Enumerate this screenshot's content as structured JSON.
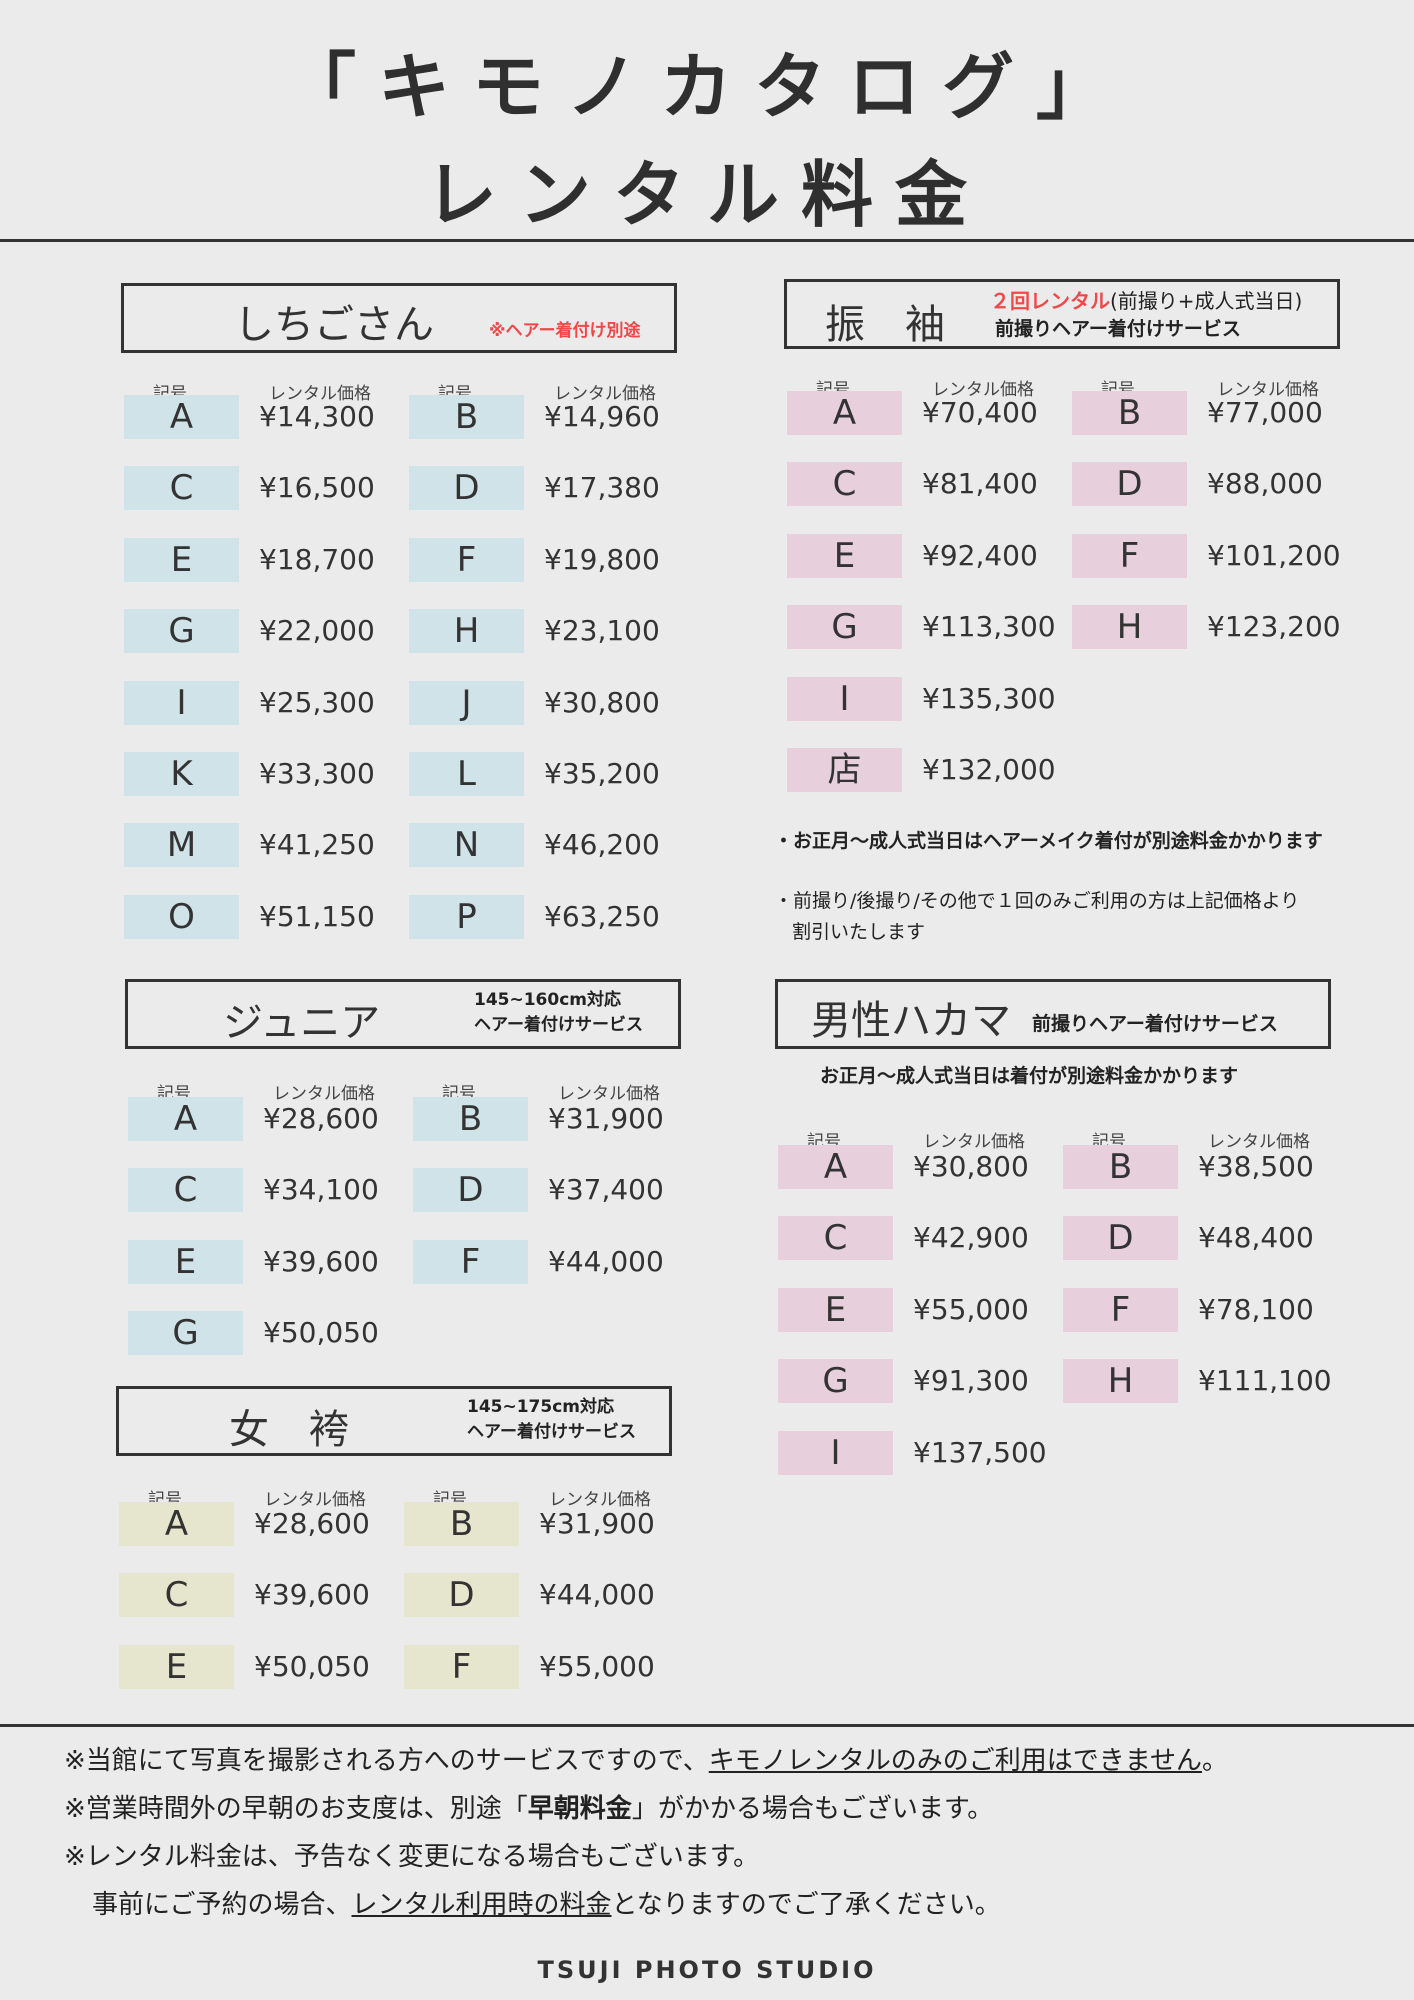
{
  "title": {
    "line1": "「キモノカタログ」",
    "line2": "レンタル料金"
  },
  "col_headers": {
    "code": "記号",
    "price": "レンタル価格"
  },
  "colors": {
    "shichigosan": "#cfe3e8",
    "furisode": "#e7cfdc",
    "junior": "#cfe3e8",
    "onna_hakama": "#e6e6cf",
    "danse_hakama": "#e7cfdc",
    "accent_red": "#f04848"
  },
  "shichigosan": {
    "name": "しちごさん",
    "note": "※ヘアー着付け別途",
    "items": [
      [
        "A",
        "¥14,300"
      ],
      [
        "B",
        "¥14,960"
      ],
      [
        "C",
        "¥16,500"
      ],
      [
        "D",
        "¥17,380"
      ],
      [
        "E",
        "¥18,700"
      ],
      [
        "F",
        "¥19,800"
      ],
      [
        "G",
        "¥22,000"
      ],
      [
        "H",
        "¥23,100"
      ],
      [
        "I",
        "¥25,300"
      ],
      [
        "J",
        "¥30,800"
      ],
      [
        "K",
        "¥33,300"
      ],
      [
        "L",
        "¥35,200"
      ],
      [
        "M",
        "¥41,250"
      ],
      [
        "N",
        "¥46,200"
      ],
      [
        "O",
        "¥51,150"
      ],
      [
        "P",
        "¥63,250"
      ]
    ]
  },
  "furisode": {
    "name": "振　袖",
    "note_red": "２回レンタル",
    "note_paren": "(前撮り+成人式当日)",
    "note2": "前撮りヘアー着付けサービス",
    "items": [
      [
        "A",
        "¥70,400"
      ],
      [
        "B",
        "¥77,000"
      ],
      [
        "C",
        "¥81,400"
      ],
      [
        "D",
        "¥88,000"
      ],
      [
        "E",
        "¥92,400"
      ],
      [
        "F",
        "¥101,200"
      ],
      [
        "G",
        "¥113,300"
      ],
      [
        "H",
        "¥123,200"
      ],
      [
        "I",
        "¥135,300"
      ],
      null,
      [
        "店",
        "¥132,000"
      ],
      null
    ],
    "notes": [
      "・お正月～成人式当日はヘアーメイク着付が別途料金かかります",
      "・前撮り/後撮り/その他で１回のみご利用の方は上記価格より",
      "割引いたします"
    ]
  },
  "junior": {
    "name": "ジュニア",
    "note1": "145~160cm対応",
    "note2": "ヘアー着付けサービス",
    "items": [
      [
        "A",
        "¥28,600"
      ],
      [
        "B",
        "¥31,900"
      ],
      [
        "C",
        "¥34,100"
      ],
      [
        "D",
        "¥37,400"
      ],
      [
        "E",
        "¥39,600"
      ],
      [
        "F",
        "¥44,000"
      ],
      [
        "G",
        "¥50,050"
      ],
      null
    ]
  },
  "onna_hakama": {
    "name": "女　袴",
    "note1": "145~175cm対応",
    "note2": "ヘアー着付けサービス",
    "items": [
      [
        "A",
        "¥28,600"
      ],
      [
        "B",
        "¥31,900"
      ],
      [
        "C",
        "¥39,600"
      ],
      [
        "D",
        "¥44,000"
      ],
      [
        "E",
        "¥50,050"
      ],
      [
        "F",
        "¥55,000"
      ]
    ]
  },
  "dansei_hakama": {
    "name": "男性ハカマ",
    "note": "前撮りヘアー着付けサービス",
    "sub_note": "お正月～成人式当日は着付が別途料金かかります",
    "items": [
      [
        "A",
        "¥30,800"
      ],
      [
        "B",
        "¥38,500"
      ],
      [
        "C",
        "¥42,900"
      ],
      [
        "D",
        "¥48,400"
      ],
      [
        "E",
        "¥55,000"
      ],
      [
        "F",
        "¥78,100"
      ],
      [
        "G",
        "¥91,300"
      ],
      [
        "H",
        "¥111,100"
      ],
      [
        "I",
        "¥137,500"
      ],
      null
    ]
  },
  "footer": {
    "line1_a": "※当館にて写真を撮影される方へのサービスですので、",
    "line1_u": "キモノレンタルのみのご利用はできません",
    "line1_b": "。",
    "line2_a": "※営業時間外の早朝のお支度は、別途「",
    "line2_bold": "早朝料金",
    "line2_b": "」がかかる場合もございます。",
    "line3": "※レンタル料金は、予告なく変更になる場合もございます。",
    "line4_a": "事前にご予約の場合、",
    "line4_u": "レンタル利用時の料金",
    "line4_b": "となりますのでご了承ください。",
    "brand": "TSUJI PHOTO STUDIO"
  }
}
